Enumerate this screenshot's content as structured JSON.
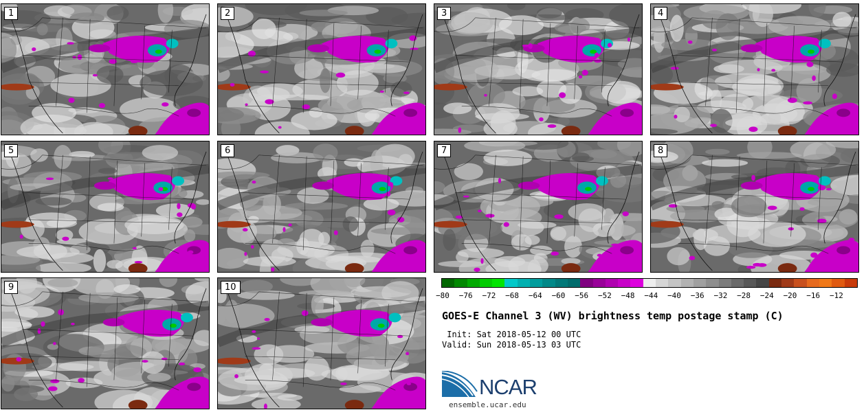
{
  "panels": [
    {
      "label": "1"
    },
    {
      "label": "2"
    },
    {
      "label": "3"
    },
    {
      "label": "4"
    },
    {
      "label": "5"
    },
    {
      "label": "6"
    },
    {
      "label": "7"
    },
    {
      "label": "8"
    },
    {
      "label": "9"
    },
    {
      "label": "10"
    }
  ],
  "colorbar": {
    "colors": [
      "#006600",
      "#008800",
      "#00aa00",
      "#00cc00",
      "#00e400",
      "#00c8c8",
      "#00b0b0",
      "#009c9c",
      "#008888",
      "#007878",
      "#006c6c",
      "#800080",
      "#990099",
      "#b000b0",
      "#c800c8",
      "#dd00dd",
      "#eeeeee",
      "#d6d6d6",
      "#c4c4c4",
      "#b2b2b2",
      "#a0a0a0",
      "#8e8e8e",
      "#7c7c7c",
      "#6a6a6a",
      "#585858",
      "#464646",
      "#7a2a10",
      "#a03a18",
      "#c8501e",
      "#e66a1e",
      "#f07818",
      "#e05a10",
      "#c83a0a"
    ],
    "ticks": [
      "−80",
      "−76",
      "−72",
      "−68",
      "−64",
      "−60",
      "−56",
      "−52",
      "−48",
      "−44",
      "−40",
      "−36",
      "−32",
      "−28",
      "−24",
      "−20",
      "−16",
      "−12"
    ],
    "min": -80,
    "max": -10
  },
  "title": "GOES-E Channel 3 (WV) brightness temp postage stamp (C)",
  "init_line": " Init: Sat 2018-05-12 00 UTC",
  "valid_line": "Valid: Sun 2018-05-13 03 UTC",
  "logo": {
    "text": "NCAR",
    "site": "ensemble.ucar.edu",
    "colors": {
      "blue": "#1c6ea8",
      "navy": "#1c3f6e"
    }
  }
}
